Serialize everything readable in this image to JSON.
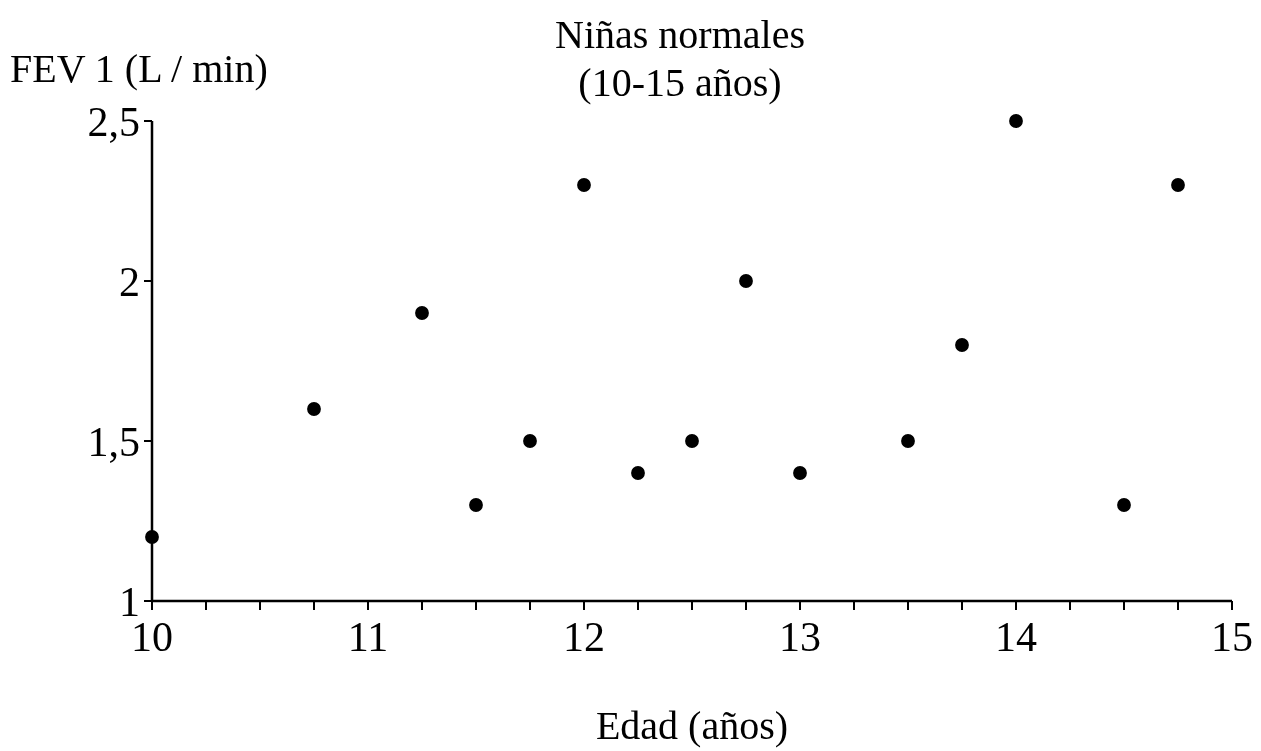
{
  "chart_data": {
    "type": "scatter",
    "title": "Niñas normales",
    "subtitle": "(10-15 años)",
    "xlabel": "Edad (años)",
    "ylabel": "FEV 1 (L / min)",
    "x": [
      10,
      10.75,
      11.25,
      11.5,
      11.75,
      12,
      12.25,
      12.5,
      12.75,
      13,
      13.5,
      13.75,
      14,
      14.5,
      14.75
    ],
    "values": [
      1.2,
      1.6,
      1.9,
      1.3,
      1.5,
      2.3,
      1.4,
      1.5,
      2.0,
      1.4,
      1.5,
      1.8,
      2.5,
      1.3,
      2.3
    ],
    "color": "#000000",
    "marker": "circle",
    "grid": false,
    "xlim": [
      10,
      15
    ],
    "ylim": [
      1,
      2.5
    ],
    "xticks": [
      10,
      {
        "value": 10.25,
        "label": null
      },
      {
        "value": 10.5,
        "label": null
      },
      {
        "value": 10.75,
        "label": null
      },
      11,
      {
        "value": 11.25,
        "label": null
      },
      {
        "value": 11.5,
        "label": null
      },
      {
        "value": 11.75,
        "label": null
      },
      12,
      {
        "value": 12.25,
        "label": null
      },
      {
        "value": 12.5,
        "label": null
      },
      {
        "value": 12.75,
        "label": null
      },
      13,
      {
        "value": 13.25,
        "label": null
      },
      {
        "value": 13.5,
        "label": null
      },
      {
        "value": 13.75,
        "label": null
      },
      14,
      {
        "value": 14.25,
        "label": null
      },
      {
        "value": 14.5,
        "label": null
      },
      {
        "value": 14.75,
        "label": null
      },
      15
    ],
    "yticks": [
      1,
      {
        "value": 1.5,
        "label": "1,5"
      },
      2,
      {
        "value": 2.5,
        "label": "2,5"
      }
    ]
  }
}
